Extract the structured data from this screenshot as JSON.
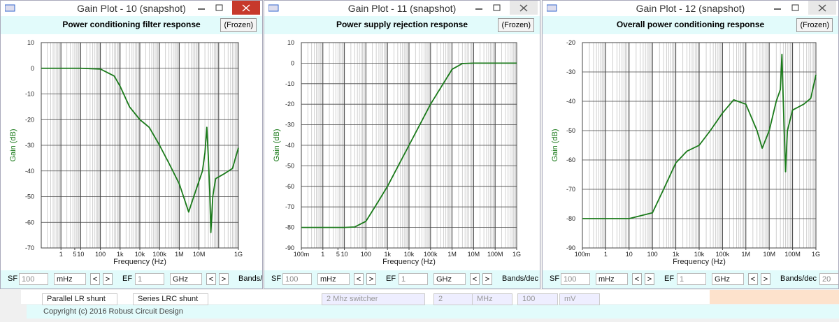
{
  "windows": [
    {
      "title": "Gain Plot - 10  (snapshot)",
      "chart": {
        "type": "line",
        "title": "Power conditioning filter response",
        "frozen_button": "(Frozen)",
        "x_label": "Frequency (Hz)",
        "y_label": "Gain (dB)",
        "log_x": true,
        "grid": true,
        "color": "#1a7a1a",
        "xlim": [
          0.1,
          1000000000
        ],
        "ylim": [
          -70,
          10
        ],
        "xticks": [
          1,
          5,
          10,
          100,
          {
            "value": 1000,
            "label": "1k"
          },
          {
            "value": 10000,
            "label": "10k"
          },
          {
            "value": 100000,
            "label": "100k"
          },
          {
            "value": 1000000,
            "label": "1M"
          },
          {
            "value": 10000000,
            "label": "10M"
          },
          {
            "value": 1000000000,
            "label": "1G"
          }
        ],
        "yticks": [
          10,
          0,
          -10,
          -20,
          -30,
          -40,
          -50,
          -60,
          -70
        ],
        "x": [
          0.1,
          10,
          100,
          500,
          1000,
          3000,
          10000,
          30000,
          100000,
          300000,
          1000000,
          3000000,
          6000000,
          15000000,
          20000000,
          25000000,
          30000000,
          35000000,
          40000000,
          50000000,
          70000000,
          200000000,
          500000000,
          1000000000
        ],
        "values": [
          0,
          0,
          -0.3,
          -3,
          -7,
          -15,
          -20,
          -23,
          -30,
          -37,
          -45,
          -56,
          -49,
          -40,
          -33,
          -23,
          -35,
          -48,
          -64,
          -50,
          -43,
          -41,
          -39,
          -31
        ]
      },
      "toolbar": {
        "sf_label": "SF",
        "sf_value": "100",
        "sf_unit": "mHz",
        "prev": "<",
        "next": ">",
        "ef_label": "EF",
        "ef_value": "1",
        "ef_unit": "GHz",
        "ef_prev": "<",
        "ef_next": ">",
        "bands_label": "Bands/"
      }
    },
    {
      "title": "Gain Plot - 11  (snapshot)",
      "chart": {
        "type": "line",
        "title": "Power supply rejection response",
        "frozen_button": "(Frozen)",
        "x_label": "Frequency (Hz)",
        "y_label": "Gain (dB)",
        "log_x": true,
        "grid": true,
        "color": "#1a7a1a",
        "xlim": [
          0.1,
          1000000000
        ],
        "ylim": [
          -90,
          10
        ],
        "xticks": [
          {
            "value": 0.1,
            "label": "100m"
          },
          1,
          5,
          10,
          100,
          {
            "value": 1000,
            "label": "1k"
          },
          {
            "value": 10000,
            "label": "10k"
          },
          {
            "value": 100000,
            "label": "100k"
          },
          {
            "value": 1000000,
            "label": "1M"
          },
          {
            "value": 10000000,
            "label": "10M"
          },
          {
            "value": 100000000,
            "label": "100M"
          },
          {
            "value": 1000000000,
            "label": "1G"
          }
        ],
        "yticks": [
          10,
          0,
          -10,
          -20,
          -30,
          -40,
          -50,
          -60,
          -70,
          -80,
          -90
        ],
        "x": [
          0.1,
          10,
          30,
          100,
          300,
          1000,
          10000,
          100000,
          1000000,
          3000000,
          10000000,
          1000000000
        ],
        "values": [
          -80,
          -80,
          -79.8,
          -77,
          -69,
          -60,
          -40,
          -20,
          -3,
          -0.2,
          0,
          0
        ]
      },
      "toolbar": {
        "sf_label": "SF",
        "sf_value": "100",
        "sf_unit": "mHz",
        "prev": "<",
        "next": ">",
        "ef_label": "EF",
        "ef_value": "1",
        "ef_unit": "GHz",
        "ef_prev": "<",
        "ef_next": ">",
        "bands_label": "Bands/dec"
      }
    },
    {
      "title": "Gain Plot - 12  (snapshot)",
      "chart": {
        "type": "line",
        "title": "Overall power conditioning response",
        "frozen_button": "(Frozen)",
        "x_label": "Frequency (Hz)",
        "y_label": "Gain (dB)",
        "log_x": true,
        "grid": true,
        "color": "#1a7a1a",
        "xlim": [
          0.1,
          1000000000
        ],
        "ylim": [
          -90,
          -20
        ],
        "xticks": [
          {
            "value": 0.1,
            "label": "100m"
          },
          1,
          10,
          100,
          {
            "value": 1000,
            "label": "1k"
          },
          {
            "value": 10000,
            "label": "10k"
          },
          {
            "value": 100000,
            "label": "100k"
          },
          {
            "value": 1000000,
            "label": "1M"
          },
          {
            "value": 10000000,
            "label": "10M"
          },
          {
            "value": 100000000,
            "label": "100M"
          },
          {
            "value": 1000000000,
            "label": "1G"
          }
        ],
        "yticks": [
          -20,
          -30,
          -40,
          -50,
          -60,
          -70,
          -80,
          -90
        ],
        "x": [
          0.1,
          10,
          100,
          300,
          1000,
          3000,
          10000,
          30000,
          100000,
          300000,
          1000000,
          3000000,
          5000000,
          10000000,
          20000000,
          30000000,
          35000000,
          40000000,
          50000000,
          60000000,
          100000000,
          300000000,
          600000000,
          1000000000
        ],
        "values": [
          -80,
          -80,
          -78,
          -70,
          -61,
          -57,
          -55,
          -50,
          -44,
          -39.5,
          -41,
          -50,
          -56,
          -50,
          -40,
          -36,
          -24,
          -40,
          -64,
          -50,
          -43,
          -41,
          -39,
          -31
        ]
      },
      "toolbar": {
        "sf_label": "SF",
        "sf_value": "100",
        "sf_unit": "mHz",
        "prev": "<",
        "next": ">",
        "ef_label": "EF",
        "ef_value": "1",
        "ef_unit": "GHz",
        "ef_prev": "<",
        "ef_next": ">",
        "bands_label": "Bands/dec",
        "bands_value": "20"
      }
    }
  ],
  "background": {
    "items": [
      "Parallel LR shunt",
      "Series LRC shunt",
      "2 Mhz switcher",
      "2",
      "MHz",
      "100",
      "mV"
    ],
    "copyright": "Copyright (c) 2016 Robust Circuit Design"
  }
}
